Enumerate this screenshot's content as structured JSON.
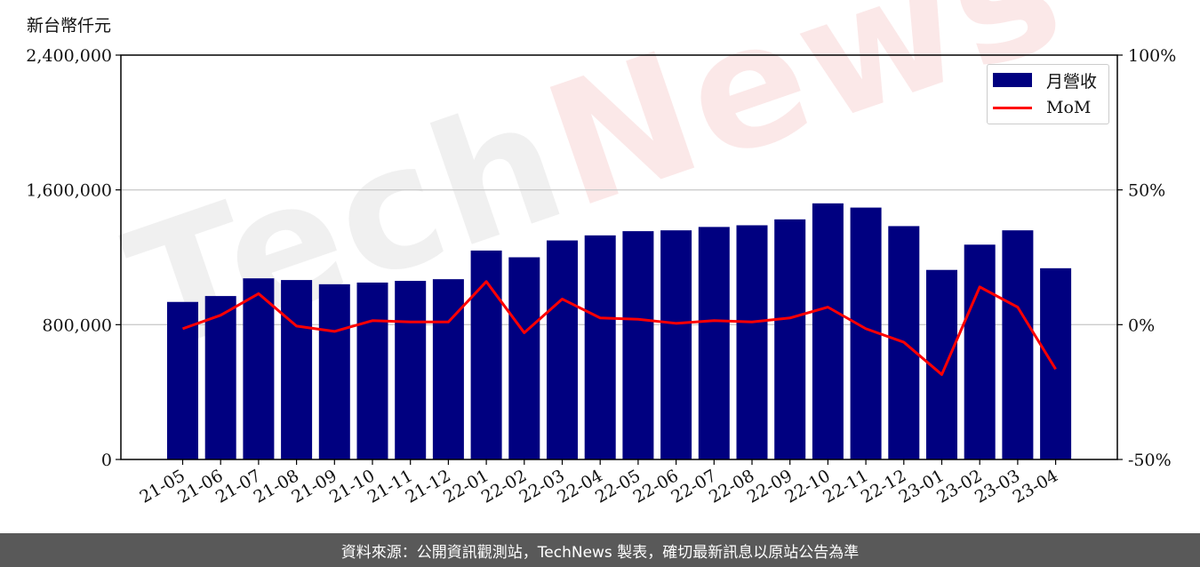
{
  "unit_label": "新台幣仟元",
  "watermark": {
    "text_main": "Tech",
    "text_accent": "News"
  },
  "footer_text": "資料來源：公開資訊觀測站，TechNews 製表，確切最新訊息以原站公告為準",
  "colors": {
    "bar": "#000080",
    "line": "#ff0000",
    "grid": "#cccccc",
    "footer_bg": "#595959"
  },
  "chart_data": {
    "type": "bar",
    "categories": [
      "21-05",
      "21-06",
      "21-07",
      "21-08",
      "21-09",
      "21-10",
      "21-11",
      "21-12",
      "22-01",
      "22-02",
      "22-03",
      "22-04",
      "22-05",
      "22-06",
      "22-07",
      "22-08",
      "22-09",
      "22-10",
      "22-11",
      "22-12",
      "23-01",
      "23-02",
      "23-03",
      "23-04"
    ],
    "series": [
      {
        "name": "月營收",
        "type": "bar",
        "axis": "left",
        "values": [
          935000,
          970000,
          1075000,
          1065000,
          1040000,
          1050000,
          1060000,
          1070000,
          1240000,
          1200000,
          1300000,
          1330000,
          1355000,
          1360000,
          1380000,
          1390000,
          1425000,
          1520000,
          1495000,
          1385000,
          1125000,
          1275000,
          1360000,
          1135000
        ]
      },
      {
        "name": "MoM",
        "type": "line",
        "axis": "right",
        "unit": "%",
        "values": [
          -1.5,
          3.5,
          11.5,
          -0.5,
          -2.5,
          1.5,
          1.0,
          1.0,
          16.0,
          -3.0,
          9.5,
          2.5,
          2.0,
          0.5,
          1.5,
          1.0,
          2.5,
          6.5,
          -1.5,
          -6.5,
          -18.5,
          14.0,
          6.5,
          -16.5
        ]
      }
    ],
    "y_left": {
      "ylim": [
        0,
        2400000
      ],
      "ticks": [
        0,
        800000,
        1600000,
        2400000
      ],
      "tick_labels": [
        "0",
        "800,000",
        "1,600,000",
        "2,400,000"
      ]
    },
    "y_right": {
      "ylim": [
        -50,
        100
      ],
      "ticks": [
        -50,
        0,
        50,
        100
      ],
      "tick_labels": [
        "-50%",
        "0%",
        "50%",
        "100%"
      ]
    },
    "grid": "horizontal",
    "legend": {
      "placement": "top-right",
      "entries": [
        "月營收",
        "MoM"
      ]
    }
  }
}
